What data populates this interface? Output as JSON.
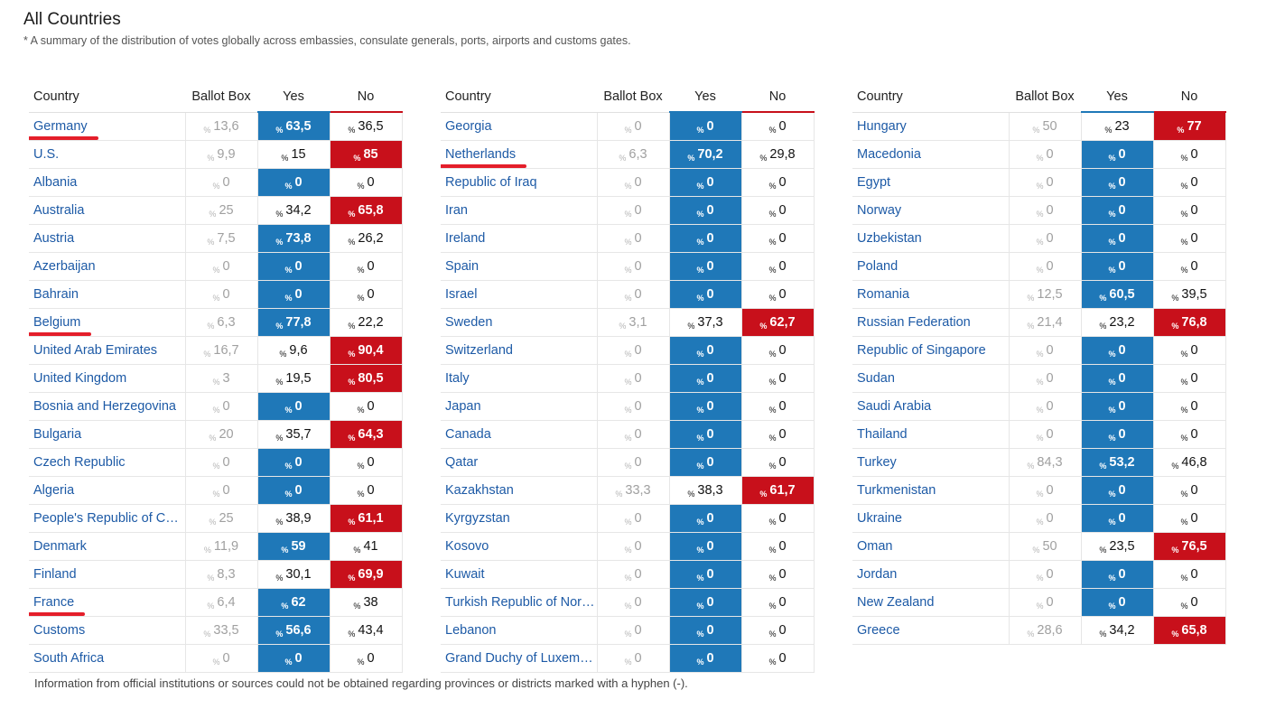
{
  "page": {
    "title": "All Countries",
    "subtitle": "* A summary of the distribution of votes globally across embassies, consulate generals, ports, airports and customs gates.",
    "footnote": "Information from official institutions or sources could not be obtained regarding provinces or districts marked with a hyphen (-)."
  },
  "colors": {
    "yes_win": "#1f78b8",
    "no_win": "#c8101b",
    "link": "#1d5aa6",
    "marker": "#e41e2a"
  },
  "table": {
    "headers": {
      "country": "Country",
      "ballot": "Ballot Box",
      "yes": "Yes",
      "no": "No"
    },
    "percent_sign": "%",
    "columns": [
      {
        "rows": [
          {
            "country": "Germany",
            "ballot": "13,6",
            "yes": "63,5",
            "no": "36,5",
            "winner": "yes",
            "marked": true
          },
          {
            "country": "U.S.",
            "ballot": "9,9",
            "yes": "15",
            "no": "85",
            "winner": "no"
          },
          {
            "country": "Albania",
            "ballot": "0",
            "yes": "0",
            "no": "0",
            "winner": "yes"
          },
          {
            "country": "Australia",
            "ballot": "25",
            "yes": "34,2",
            "no": "65,8",
            "winner": "no"
          },
          {
            "country": "Austria",
            "ballot": "7,5",
            "yes": "73,8",
            "no": "26,2",
            "winner": "yes"
          },
          {
            "country": "Azerbaijan",
            "ballot": "0",
            "yes": "0",
            "no": "0",
            "winner": "yes"
          },
          {
            "country": "Bahrain",
            "ballot": "0",
            "yes": "0",
            "no": "0",
            "winner": "yes"
          },
          {
            "country": "Belgium",
            "ballot": "6,3",
            "yes": "77,8",
            "no": "22,2",
            "winner": "yes",
            "marked": true
          },
          {
            "country": "United Arab Emirates",
            "ballot": "16,7",
            "yes": "9,6",
            "no": "90,4",
            "winner": "no"
          },
          {
            "country": "United Kingdom",
            "ballot": "3",
            "yes": "19,5",
            "no": "80,5",
            "winner": "no"
          },
          {
            "country": "Bosnia and Herzegovina",
            "ballot": "0",
            "yes": "0",
            "no": "0",
            "winner": "yes"
          },
          {
            "country": "Bulgaria",
            "ballot": "20",
            "yes": "35,7",
            "no": "64,3",
            "winner": "no"
          },
          {
            "country": "Czech Republic",
            "ballot": "0",
            "yes": "0",
            "no": "0",
            "winner": "yes"
          },
          {
            "country": "Algeria",
            "ballot": "0",
            "yes": "0",
            "no": "0",
            "winner": "yes"
          },
          {
            "country": "People's Republic of C…",
            "ballot": "25",
            "yes": "38,9",
            "no": "61,1",
            "winner": "no"
          },
          {
            "country": "Denmark",
            "ballot": "11,9",
            "yes": "59",
            "no": "41",
            "winner": "yes"
          },
          {
            "country": "Finland",
            "ballot": "8,3",
            "yes": "30,1",
            "no": "69,9",
            "winner": "no"
          },
          {
            "country": "France",
            "ballot": "6,4",
            "yes": "62",
            "no": "38",
            "winner": "yes",
            "marked": true
          },
          {
            "country": "Customs",
            "ballot": "33,5",
            "yes": "56,6",
            "no": "43,4",
            "winner": "yes"
          },
          {
            "country": "South Africa",
            "ballot": "0",
            "yes": "0",
            "no": "0",
            "winner": "yes"
          }
        ]
      },
      {
        "rows": [
          {
            "country": "Georgia",
            "ballot": "0",
            "yes": "0",
            "no": "0",
            "winner": "yes"
          },
          {
            "country": "Netherlands",
            "ballot": "6,3",
            "yes": "70,2",
            "no": "29,8",
            "winner": "yes",
            "marked": true
          },
          {
            "country": "Republic of Iraq",
            "ballot": "0",
            "yes": "0",
            "no": "0",
            "winner": "yes"
          },
          {
            "country": "Iran",
            "ballot": "0",
            "yes": "0",
            "no": "0",
            "winner": "yes"
          },
          {
            "country": "Ireland",
            "ballot": "0",
            "yes": "0",
            "no": "0",
            "winner": "yes"
          },
          {
            "country": "Spain",
            "ballot": "0",
            "yes": "0",
            "no": "0",
            "winner": "yes"
          },
          {
            "country": "Israel",
            "ballot": "0",
            "yes": "0",
            "no": "0",
            "winner": "yes"
          },
          {
            "country": "Sweden",
            "ballot": "3,1",
            "yes": "37,3",
            "no": "62,7",
            "winner": "no"
          },
          {
            "country": "Switzerland",
            "ballot": "0",
            "yes": "0",
            "no": "0",
            "winner": "yes"
          },
          {
            "country": "Italy",
            "ballot": "0",
            "yes": "0",
            "no": "0",
            "winner": "yes"
          },
          {
            "country": "Japan",
            "ballot": "0",
            "yes": "0",
            "no": "0",
            "winner": "yes"
          },
          {
            "country": "Canada",
            "ballot": "0",
            "yes": "0",
            "no": "0",
            "winner": "yes"
          },
          {
            "country": "Qatar",
            "ballot": "0",
            "yes": "0",
            "no": "0",
            "winner": "yes"
          },
          {
            "country": "Kazakhstan",
            "ballot": "33,3",
            "yes": "38,3",
            "no": "61,7",
            "winner": "no"
          },
          {
            "country": "Kyrgyzstan",
            "ballot": "0",
            "yes": "0",
            "no": "0",
            "winner": "yes"
          },
          {
            "country": "Kosovo",
            "ballot": "0",
            "yes": "0",
            "no": "0",
            "winner": "yes"
          },
          {
            "country": "Kuwait",
            "ballot": "0",
            "yes": "0",
            "no": "0",
            "winner": "yes"
          },
          {
            "country": "Turkish Republic of Nor…",
            "ballot": "0",
            "yes": "0",
            "no": "0",
            "winner": "yes"
          },
          {
            "country": "Lebanon",
            "ballot": "0",
            "yes": "0",
            "no": "0",
            "winner": "yes"
          },
          {
            "country": "Grand Duchy of Luxem…",
            "ballot": "0",
            "yes": "0",
            "no": "0",
            "winner": "yes"
          }
        ]
      },
      {
        "rows": [
          {
            "country": "Hungary",
            "ballot": "50",
            "yes": "23",
            "no": "77",
            "winner": "no"
          },
          {
            "country": "Macedonia",
            "ballot": "0",
            "yes": "0",
            "no": "0",
            "winner": "yes"
          },
          {
            "country": "Egypt",
            "ballot": "0",
            "yes": "0",
            "no": "0",
            "winner": "yes"
          },
          {
            "country": "Norway",
            "ballot": "0",
            "yes": "0",
            "no": "0",
            "winner": "yes"
          },
          {
            "country": "Uzbekistan",
            "ballot": "0",
            "yes": "0",
            "no": "0",
            "winner": "yes"
          },
          {
            "country": "Poland",
            "ballot": "0",
            "yes": "0",
            "no": "0",
            "winner": "yes"
          },
          {
            "country": "Romania",
            "ballot": "12,5",
            "yes": "60,5",
            "no": "39,5",
            "winner": "yes"
          },
          {
            "country": "Russian Federation",
            "ballot": "21,4",
            "yes": "23,2",
            "no": "76,8",
            "winner": "no"
          },
          {
            "country": "Republic of Singapore",
            "ballot": "0",
            "yes": "0",
            "no": "0",
            "winner": "yes"
          },
          {
            "country": "Sudan",
            "ballot": "0",
            "yes": "0",
            "no": "0",
            "winner": "yes"
          },
          {
            "country": "Saudi Arabia",
            "ballot": "0",
            "yes": "0",
            "no": "0",
            "winner": "yes"
          },
          {
            "country": "Thailand",
            "ballot": "0",
            "yes": "0",
            "no": "0",
            "winner": "yes"
          },
          {
            "country": "Turkey",
            "ballot": "84,3",
            "yes": "53,2",
            "no": "46,8",
            "winner": "yes"
          },
          {
            "country": "Turkmenistan",
            "ballot": "0",
            "yes": "0",
            "no": "0",
            "winner": "yes"
          },
          {
            "country": "Ukraine",
            "ballot": "0",
            "yes": "0",
            "no": "0",
            "winner": "yes"
          },
          {
            "country": "Oman",
            "ballot": "50",
            "yes": "23,5",
            "no": "76,5",
            "winner": "no"
          },
          {
            "country": "Jordan",
            "ballot": "0",
            "yes": "0",
            "no": "0",
            "winner": "yes"
          },
          {
            "country": "New Zealand",
            "ballot": "0",
            "yes": "0",
            "no": "0",
            "winner": "yes"
          },
          {
            "country": "Greece",
            "ballot": "28,6",
            "yes": "34,2",
            "no": "65,8",
            "winner": "no"
          }
        ]
      }
    ]
  }
}
